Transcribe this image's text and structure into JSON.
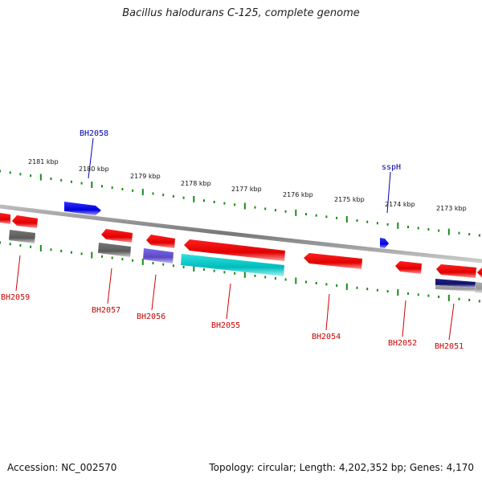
{
  "title": "Bacillus halodurans C-125, complete genome",
  "footer": {
    "accession": "Accession: NC_002570",
    "summary": "Topology: circular; Length: 4,202,352 bp; Genes: 4,170"
  },
  "scale_ticks": [
    "2181 kbp",
    "2180 kbp",
    "2179 kbp",
    "2178 kbp",
    "2177 kbp",
    "2176 kbp",
    "2175 kbp",
    "2174 kbp",
    "2173 kbp"
  ],
  "genes": [
    {
      "name": "BH2058",
      "color": "#0000ee",
      "strand": "forward"
    },
    {
      "name": "sspH",
      "color": "#0000ee",
      "strand": "forward"
    },
    {
      "name": "BH2059",
      "color": "#cc0000",
      "strand": "reverse"
    },
    {
      "name": "BH2057",
      "color": "#cc0000",
      "strand": "reverse"
    },
    {
      "name": "BH2056",
      "color": "#cc0000",
      "strand": "reverse"
    },
    {
      "name": "BH2055",
      "color": "#cc0000",
      "strand": "reverse"
    },
    {
      "name": "BH2054",
      "color": "#cc0000",
      "strand": "reverse"
    },
    {
      "name": "BH2052",
      "color": "#cc0000",
      "strand": "reverse"
    },
    {
      "name": "BH2051",
      "color": "#cc0000",
      "strand": "reverse"
    }
  ],
  "colors": {
    "forward": "#0000ee",
    "reverse": "#ee0000",
    "tick": "#1a8a1a",
    "backbone": "#888888",
    "cog_gray": "#6e6e6e",
    "cog_purple": "#6a5acd",
    "cog_cyan": "#00c8c8",
    "cog_navy": "#1a1a7a"
  }
}
